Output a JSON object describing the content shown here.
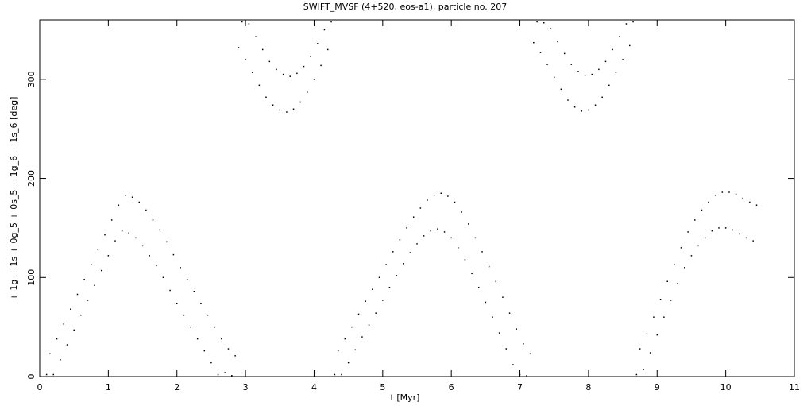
{
  "chart_data": {
    "type": "scatter",
    "title": "SWIFT_MVSF (4+520, eos-a1), particle no. 207",
    "xlabel": "t [Myr]",
    "ylabel": "+ 1g + 1s + 0g_5 + 0s_5 − 1g_6 − 1s_6 [deg]",
    "color": "#000000",
    "xlim": [
      0,
      11
    ],
    "xticks": [
      0,
      1,
      2,
      3,
      4,
      5,
      6,
      7,
      8,
      9,
      10,
      11
    ],
    "ylim": [
      0,
      360
    ],
    "yticks": [
      0,
      100,
      200,
      300
    ],
    "x": [
      0.1,
      0.15,
      0.2,
      0.25,
      0.3,
      0.35,
      0.4,
      0.45,
      0.5,
      0.55,
      0.6,
      0.65,
      0.7,
      0.75,
      0.8,
      0.85,
      0.9,
      0.95,
      1.0,
      1.05,
      1.1,
      1.15,
      1.2,
      1.25,
      1.3,
      1.35,
      1.4,
      1.45,
      1.5,
      1.55,
      1.6,
      1.65,
      1.7,
      1.75,
      1.8,
      1.85,
      1.9,
      1.95,
      2.0,
      2.05,
      2.1,
      2.15,
      2.2,
      2.25,
      2.3,
      2.35,
      2.4,
      2.45,
      2.5,
      2.55,
      2.6,
      2.65,
      2.7,
      2.75,
      2.8,
      2.85,
      2.9,
      2.95,
      3.0,
      3.05,
      3.1,
      3.15,
      3.2,
      3.25,
      3.3,
      3.35,
      3.4,
      3.45,
      3.5,
      3.55,
      3.6,
      3.65,
      3.7,
      3.75,
      3.8,
      3.85,
      3.9,
      3.95,
      4.0,
      4.05,
      4.1,
      4.15,
      4.2,
      4.25,
      4.3,
      4.35,
      4.4,
      4.45,
      4.5,
      4.55,
      4.6,
      4.65,
      4.7,
      4.75,
      4.8,
      4.85,
      4.9,
      4.95,
      5.0,
      5.05,
      5.1,
      5.15,
      5.2,
      5.25,
      5.3,
      5.35,
      5.4,
      5.45,
      5.5,
      5.55,
      5.6,
      5.65,
      5.7,
      5.75,
      5.8,
      5.85,
      5.9,
      5.95,
      6.0,
      6.05,
      6.1,
      6.15,
      6.2,
      6.25,
      6.3,
      6.35,
      6.4,
      6.45,
      6.5,
      6.55,
      6.6,
      6.65,
      6.7,
      6.75,
      6.8,
      6.85,
      6.9,
      6.95,
      7.0,
      7.05,
      7.1,
      7.15,
      7.2,
      7.25,
      7.3,
      7.35,
      7.4,
      7.45,
      7.5,
      7.55,
      7.6,
      7.65,
      7.7,
      7.75,
      7.8,
      7.85,
      7.9,
      7.95,
      8.0,
      8.05,
      8.1,
      8.15,
      8.2,
      8.25,
      8.3,
      8.35,
      8.4,
      8.45,
      8.5,
      8.55,
      8.6,
      8.65,
      8.7,
      8.75,
      8.8,
      8.85,
      8.9,
      8.95,
      9.0,
      9.05,
      9.1,
      9.15,
      9.2,
      9.25,
      9.3,
      9.35,
      9.4,
      9.45,
      9.5,
      9.55,
      9.6,
      9.65,
      9.7,
      9.75,
      9.8,
      9.85,
      9.9,
      9.95,
      10.0,
      10.05,
      10.1,
      10.15,
      10.2,
      10.25,
      10.3,
      10.35,
      10.4,
      10.45
    ],
    "values": [
      2,
      23,
      2,
      38,
      17,
      53,
      32,
      68,
      47,
      83,
      62,
      98,
      77,
      113,
      92,
      128,
      107,
      143,
      122,
      158,
      137,
      173,
      147,
      183,
      145,
      181,
      140,
      176,
      132,
      168,
      122,
      158,
      112,
      148,
      100,
      136,
      87,
      123,
      74,
      110,
      62,
      98,
      50,
      86,
      38,
      74,
      26,
      62,
      14,
      50,
      2,
      38,
      4,
      28,
      1,
      21,
      332,
      358,
      320,
      356,
      307,
      343,
      294,
      330,
      282,
      318,
      274,
      310,
      269,
      305,
      267,
      303,
      270,
      306,
      277,
      313,
      287,
      323,
      300,
      336,
      314,
      350,
      330,
      358,
      2,
      26,
      2,
      38,
      14,
      50,
      27,
      63,
      40,
      76,
      52,
      88,
      64,
      100,
      77,
      113,
      90,
      126,
      102,
      138,
      114,
      150,
      125,
      161,
      134,
      170,
      142,
      178,
      147,
      183,
      149,
      185,
      146,
      182,
      140,
      176,
      130,
      166,
      118,
      154,
      104,
      140,
      90,
      126,
      75,
      111,
      60,
      96,
      44,
      80,
      28,
      64,
      12,
      48,
      2,
      33,
      1,
      23,
      337,
      358,
      327,
      357,
      315,
      351,
      302,
      338,
      290,
      326,
      279,
      315,
      272,
      308,
      268,
      304,
      269,
      305,
      274,
      310,
      282,
      318,
      294,
      330,
      307,
      343,
      320,
      356,
      334,
      358,
      2,
      28,
      7,
      43,
      24,
      60,
      42,
      78,
      60,
      96,
      77,
      113,
      94,
      130,
      110,
      146,
      122,
      158,
      132,
      168,
      140,
      176,
      147,
      183,
      150,
      186,
      150,
      186,
      148,
      184,
      144,
      180,
      140,
      176,
      137,
      173
    ]
  }
}
